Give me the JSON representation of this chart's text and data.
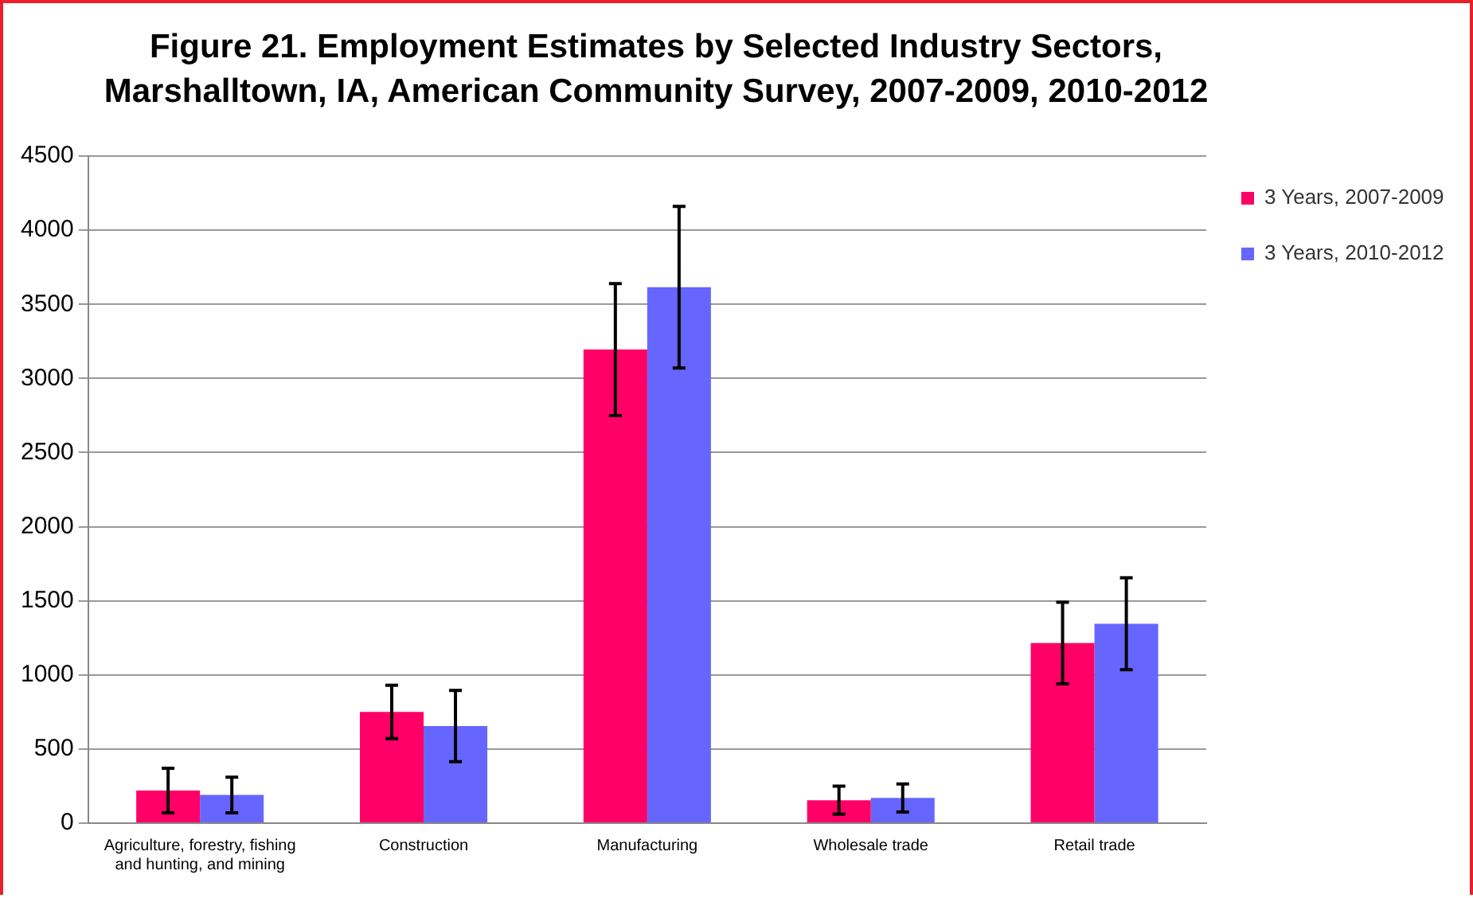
{
  "chart_data": {
    "type": "bar",
    "title": "Figure 21. Employment Estimates by Selected Industry Sectors, Marshalltown, IA, American Community Survey, 2007-2009, 2010-2012",
    "categories": [
      "Agriculture, forestry, fishing and hunting, and mining",
      "Construction",
      "Manufacturing",
      "Wholesale trade",
      "Retail trade"
    ],
    "series": [
      {
        "name": "3 Years, 2007-2009",
        "color": "#ff0066",
        "values": [
          220,
          750,
          3195,
          155,
          1215
        ],
        "errors": [
          150,
          180,
          445,
          95,
          275
        ]
      },
      {
        "name": "3 Years, 2010-2012",
        "color": "#6666ff",
        "values": [
          190,
          655,
          3615,
          170,
          1345
        ],
        "errors": [
          120,
          240,
          545,
          95,
          310
        ]
      }
    ],
    "ylim": [
      0,
      4500
    ],
    "yticks": [
      0,
      500,
      1000,
      1500,
      2000,
      2500,
      3000,
      3500,
      4000,
      4500
    ],
    "grid": "y",
    "legend": "right"
  }
}
